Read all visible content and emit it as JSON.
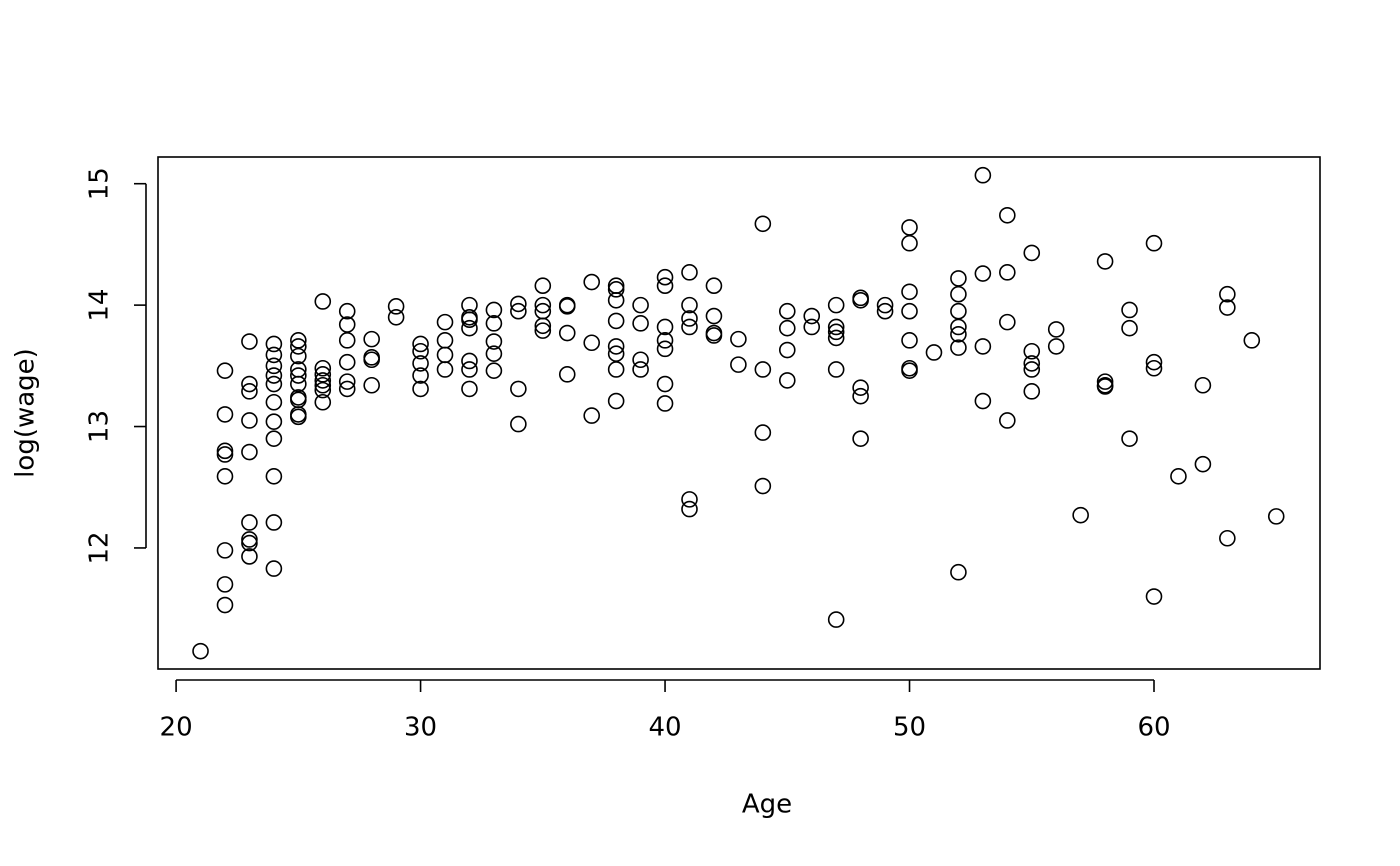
{
  "chart_data": {
    "type": "scatter",
    "x_label": "Age",
    "y_label": "log(wage)",
    "x": [
      21,
      22,
      22,
      22,
      22,
      22,
      22,
      22,
      22,
      23,
      23,
      23,
      23,
      23,
      23,
      23,
      23,
      23,
      24,
      24,
      24,
      24,
      24,
      24,
      24,
      24,
      24,
      24,
      24,
      25,
      25,
      25,
      25,
      25,
      25,
      25,
      25,
      25,
      25,
      26,
      26,
      26,
      26,
      26,
      26,
      26,
      27,
      27,
      27,
      27,
      27,
      27,
      28,
      28,
      28,
      28,
      29,
      29,
      30,
      30,
      30,
      30,
      30,
      31,
      31,
      31,
      31,
      32,
      32,
      32,
      32,
      32,
      32,
      32,
      33,
      33,
      33,
      33,
      33,
      34,
      34,
      34,
      34,
      35,
      35,
      35,
      35,
      35,
      36,
      36,
      36,
      36,
      37,
      37,
      37,
      38,
      38,
      38,
      38,
      38,
      38,
      38,
      38,
      39,
      39,
      39,
      39,
      40,
      40,
      40,
      40,
      40,
      40,
      40,
      41,
      41,
      41,
      41,
      41,
      41,
      42,
      42,
      42,
      42,
      43,
      43,
      44,
      44,
      44,
      44,
      45,
      45,
      45,
      45,
      46,
      46,
      47,
      47,
      47,
      47,
      47,
      47,
      48,
      48,
      48,
      48,
      48,
      49,
      49,
      50,
      50,
      50,
      50,
      50,
      50,
      50,
      51,
      52,
      52,
      52,
      52,
      52,
      52,
      52,
      53,
      53,
      53,
      53,
      54,
      54,
      54,
      54,
      55,
      55,
      55,
      55,
      55,
      56,
      56,
      57,
      58,
      58,
      58,
      58,
      59,
      59,
      59,
      60,
      60,
      60,
      60,
      61,
      62,
      62,
      63,
      63,
      63,
      64,
      65
    ],
    "y": [
      11.15,
      13.46,
      13.1,
      12.8,
      12.77,
      12.59,
      11.98,
      11.7,
      11.53,
      13.7,
      13.35,
      13.29,
      13.05,
      12.79,
      12.21,
      12.07,
      12.04,
      11.93,
      13.68,
      13.59,
      13.5,
      13.42,
      13.35,
      13.2,
      13.04,
      12.9,
      12.59,
      12.21,
      11.83,
      13.71,
      13.66,
      13.58,
      13.47,
      13.42,
      13.35,
      13.24,
      13.22,
      13.1,
      13.08,
      14.03,
      13.48,
      13.43,
      13.38,
      13.34,
      13.3,
      13.2,
      13.95,
      13.84,
      13.71,
      13.53,
      13.37,
      13.31,
      13.72,
      13.57,
      13.55,
      13.34,
      13.99,
      13.9,
      13.68,
      13.62,
      13.52,
      13.42,
      13.31,
      13.86,
      13.71,
      13.59,
      13.47,
      14.0,
      13.9,
      13.88,
      13.81,
      13.54,
      13.47,
      13.31,
      13.96,
      13.85,
      13.7,
      13.6,
      13.46,
      14.01,
      13.95,
      13.31,
      13.02,
      14.16,
      14.0,
      13.95,
      13.83,
      13.79,
      14.0,
      13.99,
      13.77,
      13.43,
      14.19,
      13.69,
      13.09,
      14.16,
      14.13,
      14.04,
      13.87,
      13.66,
      13.6,
      13.47,
      13.21,
      14.0,
      13.85,
      13.55,
      13.47,
      14.23,
      14.16,
      13.82,
      13.71,
      13.64,
      13.35,
      13.19,
      14.27,
      14.0,
      13.89,
      13.82,
      12.4,
      12.32,
      14.16,
      13.91,
      13.77,
      13.75,
      13.72,
      13.51,
      14.67,
      13.47,
      12.95,
      12.51,
      13.95,
      13.81,
      13.63,
      13.38,
      13.91,
      13.82,
      14.0,
      13.82,
      13.78,
      13.73,
      13.47,
      11.41,
      14.06,
      14.04,
      13.32,
      13.25,
      12.9,
      14.0,
      13.95,
      14.64,
      14.51,
      14.11,
      13.95,
      13.71,
      13.48,
      13.46,
      13.61,
      14.22,
      14.09,
      13.95,
      13.82,
      13.76,
      13.65,
      11.8,
      15.07,
      14.26,
      13.66,
      13.21,
      14.74,
      14.27,
      13.86,
      13.05,
      14.43,
      13.62,
      13.52,
      13.47,
      13.29,
      13.8,
      13.66,
      12.27,
      14.36,
      13.37,
      13.34,
      13.33,
      13.96,
      13.81,
      12.9,
      14.51,
      13.53,
      13.48,
      11.6,
      12.59,
      13.34,
      12.69,
      14.09,
      13.98,
      12.08,
      13.71,
      12.26
    ],
    "xlim": [
      19.26,
      66.79
    ],
    "ylim": [
      11.003,
      15.22
    ],
    "xticks": [
      20,
      30,
      40,
      50,
      60
    ],
    "yticks": [
      12,
      13,
      14,
      15
    ],
    "color": "#000000"
  }
}
